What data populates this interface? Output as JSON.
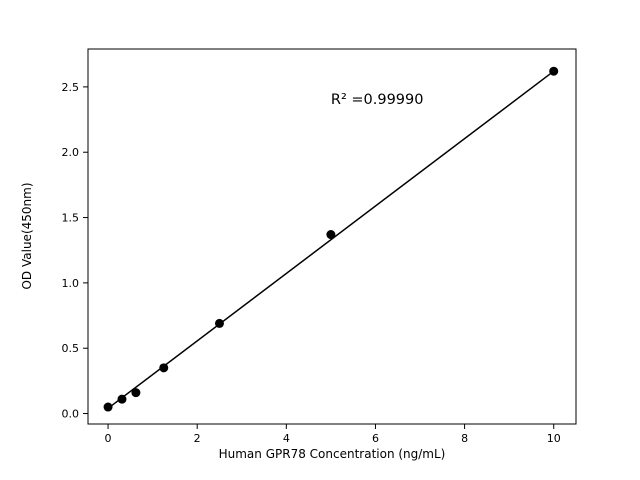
{
  "chart_data": {
    "type": "scatter",
    "title": "",
    "xlabel": "Human GPR78 Concentration (ng/mL)",
    "ylabel": "OD Value(450nm)",
    "annotation": {
      "text": "R² =0.99990",
      "x": 5.0,
      "y": 2.37
    },
    "x": [
      0,
      0.3125,
      0.625,
      1.25,
      2.5,
      5,
      10
    ],
    "y": [
      0.05,
      0.11,
      0.16,
      0.35,
      0.69,
      1.37,
      2.62
    ],
    "fit_line": {
      "x": [
        0,
        10
      ],
      "y": [
        0.04,
        2.62
      ]
    },
    "xticks": [
      0,
      2,
      4,
      6,
      8,
      10
    ],
    "xtick_labels": [
      "0",
      "2",
      "4",
      "6",
      "8",
      "10"
    ],
    "yticks": [
      0.0,
      0.5,
      1.0,
      1.5,
      2.0,
      2.5
    ],
    "ytick_labels": [
      "0.0",
      "0.5",
      "1.0",
      "1.5",
      "2.0",
      "2.5"
    ],
    "xlim": [
      -0.45,
      10.5
    ],
    "ylim": [
      -0.08,
      2.79
    ],
    "marker_color": "#000000",
    "line_color": "#000000",
    "background_color": "#ffffff",
    "grid": false,
    "legend": null
  }
}
